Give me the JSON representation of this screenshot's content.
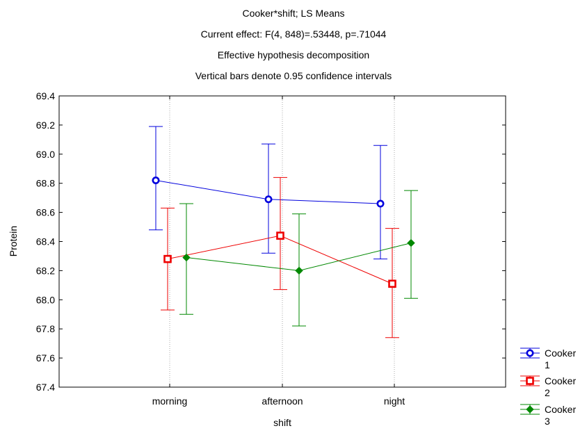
{
  "chart_data": {
    "type": "line",
    "title_lines": [
      "Cooker*shift; LS Means",
      "Current effect: F(4, 848)=.53448, p=.71044",
      "Effective hypothesis decomposition",
      "Vertical bars denote 0.95 confidence intervals"
    ],
    "xlabel": "shift",
    "ylabel": "Protein",
    "categories": [
      "morning",
      "afternoon",
      "night"
    ],
    "ylim": [
      67.4,
      69.4
    ],
    "yticks": [
      "67.4",
      "67.6",
      "67.8",
      "68.0",
      "68.2",
      "68.4",
      "68.6",
      "68.8",
      "69.0",
      "69.2",
      "69.4"
    ],
    "grid": "vertical dotted lines at categories",
    "legend_position": "bottom-right, outside plot",
    "series": [
      {
        "name": "Cooker 1",
        "legend_lines": [
          "Cooker",
          "1"
        ],
        "color": "#0000dd",
        "marker": "circle",
        "values": [
          68.82,
          68.69,
          68.66
        ],
        "lower": [
          68.48,
          68.32,
          68.28
        ],
        "upper": [
          69.19,
          69.07,
          69.06
        ]
      },
      {
        "name": "Cooker 2",
        "legend_lines": [
          "Cooker",
          "2"
        ],
        "color": "#ee0000",
        "marker": "square",
        "values": [
          68.28,
          68.44,
          68.11
        ],
        "lower": [
          67.93,
          68.07,
          67.74
        ],
        "upper": [
          68.63,
          68.84,
          68.49
        ]
      },
      {
        "name": "Cooker 3",
        "legend_lines": [
          "Cooker",
          "3"
        ],
        "color": "#008800",
        "marker": "diamond",
        "values": [
          68.29,
          68.2,
          68.39
        ],
        "lower": [
          67.9,
          67.82,
          68.01
        ],
        "upper": [
          68.66,
          68.59,
          68.75
        ]
      }
    ]
  }
}
